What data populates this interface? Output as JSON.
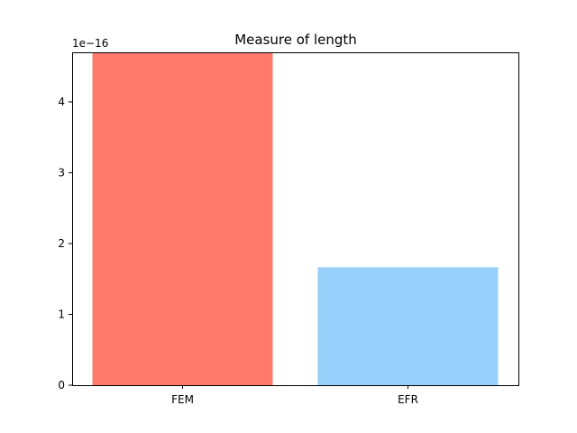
{
  "chart_data": {
    "type": "bar",
    "title": "Measure of length",
    "xlabel": "",
    "ylabel": "",
    "categories": [
      "FEM",
      "EFR"
    ],
    "values": [
      4.7e-16,
      1.665e-16
    ],
    "colors": [
      "#ff7a6b",
      "#96cffa"
    ],
    "ylim": [
      0,
      4.7e-16
    ],
    "yticks": [
      0,
      1,
      2,
      3,
      4
    ],
    "ytick_labels": [
      "0",
      "1",
      "2",
      "3",
      "4"
    ],
    "y_offset_text": "1e−16",
    "grid": false,
    "legend": "none"
  }
}
